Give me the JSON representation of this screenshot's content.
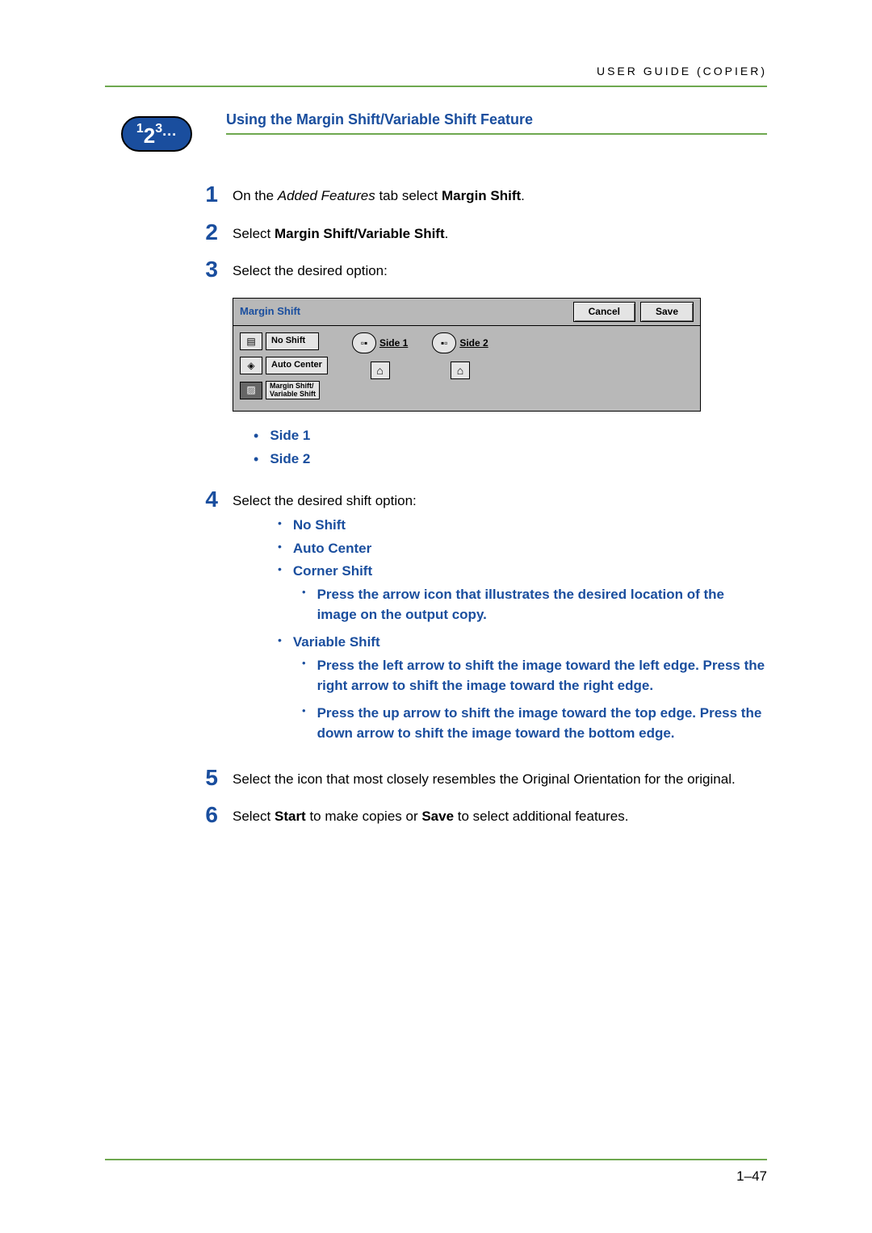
{
  "colors": {
    "accent_blue": "#1a4e9e",
    "accent_green": "#6ea84f",
    "dialog_bg": "#b8b8b8",
    "button_bg": "#e4e4e4"
  },
  "header": {
    "right_text": "USER GUIDE (COPIER)"
  },
  "badge": {
    "text": "123..."
  },
  "section_title": "Using the Margin Shift/Variable Shift Feature",
  "steps": {
    "s1": {
      "num": "1",
      "pre": "On the ",
      "italic": "Added Features",
      "mid": " tab select ",
      "bold": "Margin Shift",
      "post": "."
    },
    "s2": {
      "num": "2",
      "pre": "Select ",
      "bold": "Margin Shift/Variable Shift",
      "post": "."
    },
    "s3": {
      "num": "3",
      "text": "Select the desired option:"
    },
    "s3_bullets": {
      "b1": "Side 1",
      "b2": "Side 2"
    },
    "s4": {
      "num": "4",
      "text": "Select the desired shift option:",
      "lvl2": {
        "b1": "No Shift",
        "b2": "Auto Center",
        "b3": "Corner Shift",
        "b3_sub1": "Press the arrow icon that illustrates the desired location of the image on the output copy.",
        "b4": "Variable Shift",
        "b4_sub1": "Press the left arrow to shift the image toward the left edge. Press the right arrow to shift the image toward the right edge.",
        "b4_sub2": "Press the up arrow to shift the image toward the top edge. Press the down arrow to shift the image toward the bottom edge."
      }
    },
    "s5": {
      "num": "5",
      "text": "Select the icon that most closely resembles the Original Orientation for the original."
    },
    "s6": {
      "num": "6",
      "pre": "Select ",
      "bold1": "Start",
      "mid": " to make copies or ",
      "bold2": "Save",
      "post": " to select additional features."
    }
  },
  "dialog": {
    "title": "Margin Shift",
    "cancel": "Cancel",
    "save": "Save",
    "options": {
      "no_shift": "No Shift",
      "auto_center": "Auto Center",
      "margin_variable_l1": "Margin Shift/",
      "margin_variable_l2": "Variable Shift"
    },
    "side1": "Side 1",
    "side2": "Side 2"
  },
  "footer": {
    "page": "1–47"
  }
}
